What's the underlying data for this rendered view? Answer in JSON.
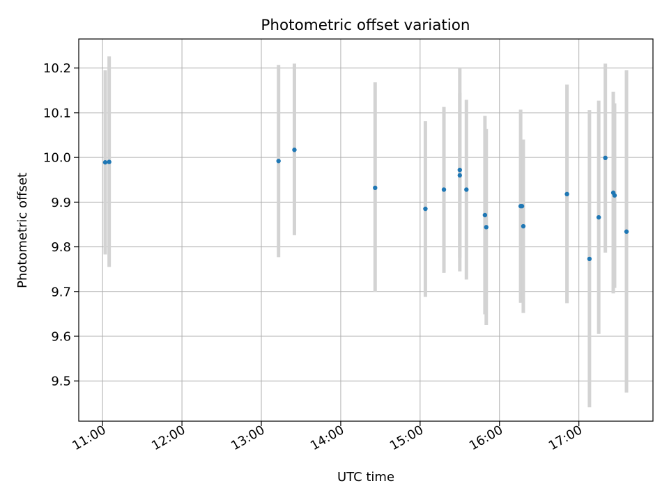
{
  "chart_data": {
    "type": "scatter",
    "title": "Photometric offset variation",
    "xlabel": "UTC time",
    "ylabel": "Photometric offset",
    "x_axis": {
      "kind": "time",
      "range": [
        "10:42",
        "17:56"
      ],
      "ticks": [
        "11:00",
        "12:00",
        "13:00",
        "14:00",
        "15:00",
        "16:00",
        "17:00"
      ]
    },
    "y_axis": {
      "range": [
        9.41,
        10.265
      ],
      "ticks": [
        "9.5",
        "9.6",
        "9.7",
        "9.8",
        "9.9",
        "10.0",
        "10.1",
        "10.2"
      ]
    },
    "grid": true,
    "colors": {
      "point": "#1f77b4",
      "errorbar": "#d3d3d3",
      "grid": "#b0b0b0"
    },
    "points": [
      {
        "x": "11:02",
        "y": 9.989,
        "ylow": 9.783,
        "yhigh": 10.195
      },
      {
        "x": "11:05",
        "y": 9.99,
        "ylow": 9.755,
        "yhigh": 10.226
      },
      {
        "x": "13:13",
        "y": 9.992,
        "ylow": 9.777,
        "yhigh": 10.207
      },
      {
        "x": "13:25",
        "y": 10.017,
        "ylow": 9.826,
        "yhigh": 10.21
      },
      {
        "x": "14:26",
        "y": 9.932,
        "ylow": 9.699,
        "yhigh": 10.168
      },
      {
        "x": "15:04",
        "y": 9.885,
        "ylow": 9.688,
        "yhigh": 10.081
      },
      {
        "x": "15:18",
        "y": 9.928,
        "ylow": 9.742,
        "yhigh": 10.113
      },
      {
        "x": "15:30",
        "y": 9.972,
        "ylow": 9.745,
        "yhigh": 10.199
      },
      {
        "x": "15:30",
        "y": 9.96,
        "ylow": 9.776,
        "yhigh": 10.144
      },
      {
        "x": "15:35",
        "y": 9.928,
        "ylow": 9.727,
        "yhigh": 10.129
      },
      {
        "x": "15:49",
        "y": 9.871,
        "ylow": 9.649,
        "yhigh": 10.093
      },
      {
        "x": "15:50",
        "y": 9.844,
        "ylow": 9.625,
        "yhigh": 10.064
      },
      {
        "x": "16:16",
        "y": 9.891,
        "ylow": 9.675,
        "yhigh": 10.107
      },
      {
        "x": "16:17",
        "y": 9.891,
        "ylow": 9.741,
        "yhigh": 10.04
      },
      {
        "x": "16:18",
        "y": 9.846,
        "ylow": 9.652,
        "yhigh": 10.04
      },
      {
        "x": "16:51",
        "y": 9.918,
        "ylow": 9.674,
        "yhigh": 10.163
      },
      {
        "x": "17:08",
        "y": 9.773,
        "ylow": 9.441,
        "yhigh": 10.106
      },
      {
        "x": "17:15",
        "y": 9.866,
        "ylow": 9.605,
        "yhigh": 10.127
      },
      {
        "x": "17:20",
        "y": 9.999,
        "ylow": 9.787,
        "yhigh": 10.21
      },
      {
        "x": "17:26",
        "y": 9.921,
        "ylow": 9.696,
        "yhigh": 10.147
      },
      {
        "x": "17:27",
        "y": 9.915,
        "ylow": 9.708,
        "yhigh": 10.121
      },
      {
        "x": "17:36",
        "y": 9.834,
        "ylow": 9.474,
        "yhigh": 10.195
      }
    ]
  }
}
